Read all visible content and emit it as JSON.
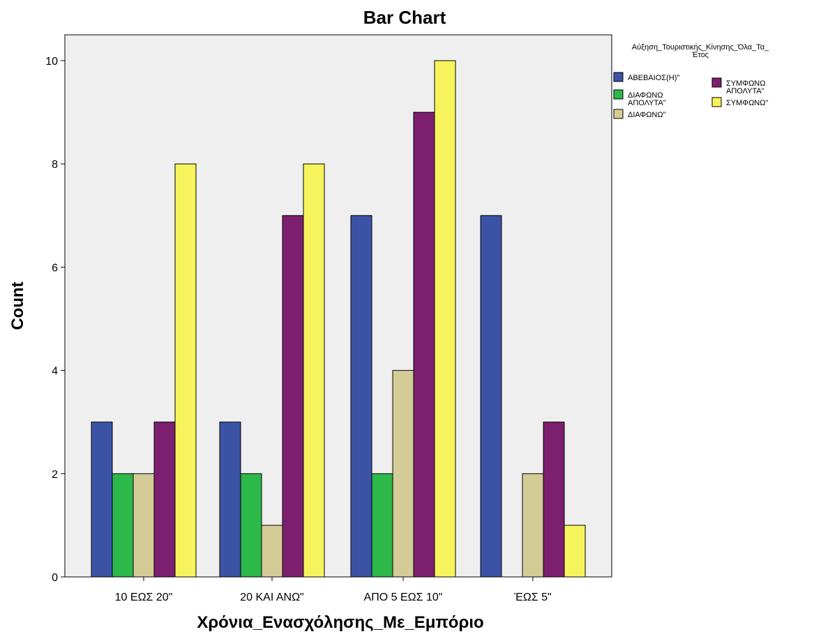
{
  "chart_data": {
    "type": "bar",
    "title": "Bar Chart",
    "xlabel": "Χρόνια_Ενασχόλησης_Με_Εμπόριο",
    "ylabel": "Count",
    "categories": [
      "10  ΕΩΣ 20\"",
      "20 ΚΑΙ ΑΝΩ\"",
      "ΑΠΟ 5 ΕΩΣ 10\"",
      "ΈΩΣ 5\""
    ],
    "ylim": [
      0,
      10.5
    ],
    "yticks": [
      "0",
      "2",
      "4",
      "6",
      "8",
      "10"
    ],
    "grid": false,
    "legend_title_lines": [
      "Αύξηση_Τουριστικής_Κίνησης_Όλα_Τα_",
      "Έτος"
    ],
    "legend_position": "right",
    "series": [
      {
        "name": "ΑΒΕΒΑΙΟΣ(Η)\"",
        "name_lines": [
          "ΑΒΕΒΑΙΟΣ(Η)\""
        ],
        "color": "#3c53a5",
        "values": [
          3,
          3,
          7,
          7
        ]
      },
      {
        "name": "ΔΙΑΦΩΝΩ ΑΠΟΛΥΤΑ\"",
        "name_lines": [
          "ΔΙΑΦΩΝΩ",
          "ΑΠΟΛΥΤΑ\""
        ],
        "color": "#2db84a",
        "values": [
          2,
          2,
          2,
          0
        ]
      },
      {
        "name": "ΔΙΑΦΩΝΩ\"",
        "name_lines": [
          "ΔΙΑΦΩΝΩ\""
        ],
        "color": "#d4cc96",
        "values": [
          2,
          1,
          4,
          2
        ]
      },
      {
        "name": "ΣΥΜΦΩΝΩ ΑΠΟΛΥΤΑ\"",
        "name_lines": [
          "ΣΥΜΦΩΝΩ",
          "ΑΠΟΛΥΤΑ\""
        ],
        "color": "#7d1f6f",
        "values": [
          3,
          7,
          9,
          3
        ]
      },
      {
        "name": "ΣΥΜΦΩΝΩ\"",
        "name_lines": [
          "ΣΥΜΦΩΝΩ\""
        ],
        "color": "#f7f35c",
        "values": [
          8,
          8,
          10,
          1
        ]
      }
    ],
    "plot_background": "#efefef"
  }
}
